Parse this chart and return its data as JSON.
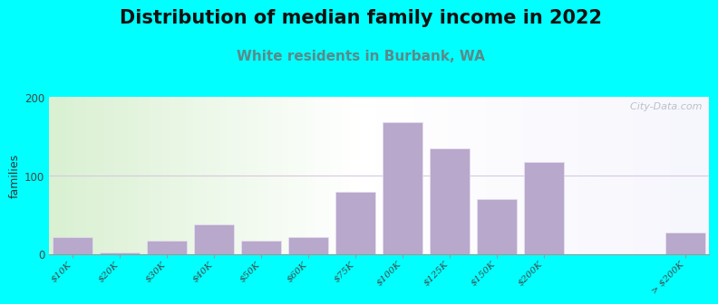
{
  "title": "Distribution of median family income in 2022",
  "subtitle": "White residents in Burbank, WA",
  "ylabel": "families",
  "categories": [
    "$10K",
    "$20K",
    "$30K",
    "$40K",
    "$50K",
    "$60K",
    "$75K",
    "$100K",
    "$125K",
    "$150K",
    "$200K",
    "> $200K"
  ],
  "values": [
    22,
    3,
    18,
    38,
    18,
    22,
    80,
    168,
    135,
    70,
    118,
    28
  ],
  "bar_color": "#b8a8cc",
  "bar_edgecolor": "#e8e0f0",
  "background_color": "#00ffff",
  "ylim": [
    0,
    200
  ],
  "yticks": [
    0,
    100,
    200
  ],
  "title_fontsize": 15,
  "subtitle_fontsize": 11,
  "subtitle_color": "#5a8a8a",
  "watermark": "  City-Data.com",
  "grid_color": "#d8c8e0",
  "ylabel_fontsize": 9,
  "tick_fontsize": 7.5
}
